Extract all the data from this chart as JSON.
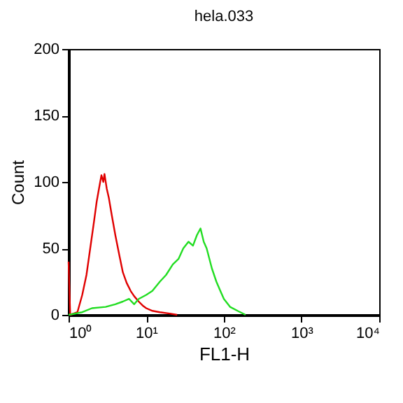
{
  "chart_data": {
    "type": "line",
    "title": "hela.033",
    "xlabel": "FL1-H",
    "ylabel": "Count",
    "log": "x",
    "xlim": [
      1,
      10000
    ],
    "xticks": [
      {
        "value": 1,
        "label": "10⁰"
      },
      {
        "value": 10,
        "label": "10¹"
      },
      {
        "value": 100,
        "label": "10²"
      },
      {
        "value": 1000,
        "label": "10³"
      },
      {
        "value": 10000,
        "label": "10⁴"
      }
    ],
    "ylim": [
      0,
      200
    ],
    "yticks": [
      0,
      50,
      100,
      150,
      200
    ],
    "grid": false,
    "series": [
      {
        "color": "#e00000",
        "x": [
          1.0,
          1.05,
          1.3,
          1.5,
          1.7,
          1.9,
          2.1,
          2.3,
          2.5,
          2.65,
          2.8,
          2.9,
          3.1,
          3.3,
          3.6,
          4.0,
          4.5,
          5.0,
          5.6,
          6.3,
          7,
          8,
          9,
          10,
          12,
          15,
          20,
          25
        ],
        "values": [
          40,
          0,
          2,
          15,
          30,
          50,
          68,
          85,
          97,
          105,
          100,
          106,
          95,
          88,
          75,
          60,
          45,
          32,
          24,
          18,
          14,
          10,
          7,
          5,
          3,
          2,
          1,
          0
        ]
      },
      {
        "color": "#22dd22",
        "x": [
          1.0,
          1.5,
          2,
          3,
          4,
          5,
          6,
          7,
          8,
          10,
          12,
          15,
          18,
          22,
          26,
          30,
          35,
          40,
          45,
          50,
          55,
          60,
          70,
          80,
          90,
          100,
          120,
          150,
          190
        ],
        "values": [
          0,
          2,
          5,
          6,
          8,
          10,
          12,
          8,
          12,
          15,
          18,
          25,
          30,
          38,
          42,
          50,
          55,
          52,
          60,
          65,
          55,
          50,
          35,
          25,
          18,
          12,
          6,
          3,
          0
        ]
      }
    ]
  }
}
